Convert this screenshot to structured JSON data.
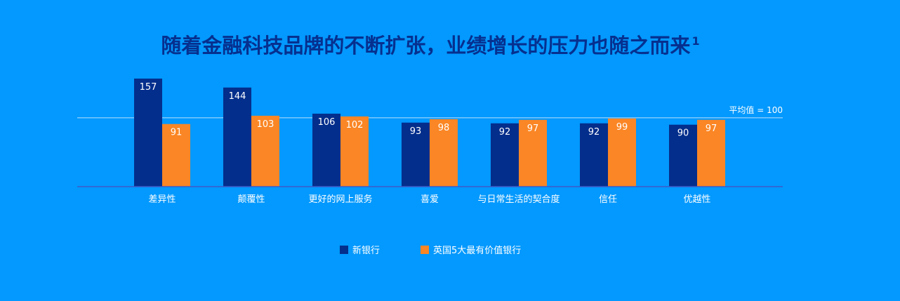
{
  "title": "随着金融科技品牌的不断扩张，业绩增长的压力也随之而来",
  "title_footnote": "1",
  "colors": {
    "background": "#0399FE",
    "series_new_bank": "#042E8C",
    "series_top5": "#FA8625",
    "axis_line": "#3C5AC8",
    "reference_line": "#BFDFFF",
    "title": "#06308F",
    "text": "#FFFFFF"
  },
  "reference_label": "平均值 = 100",
  "legend": [
    {
      "label": "新银行",
      "color": "#042E8C"
    },
    {
      "label": "英国5大最有价值银行",
      "color": "#FA8625"
    }
  ],
  "chart_data": {
    "type": "bar",
    "categories": [
      "差异性",
      "颠覆性",
      "更好的网上服务",
      "喜爱",
      "与日常生活的契合度",
      "信任",
      "优越性"
    ],
    "series": [
      {
        "name": "新银行",
        "values": [
          157,
          144,
          106,
          93,
          92,
          92,
          90
        ]
      },
      {
        "name": "英国5大最有价值银行",
        "values": [
          91,
          103,
          102,
          98,
          97,
          99,
          97
        ]
      }
    ],
    "reference_value": 100,
    "legend_position": "bottom-center",
    "grid": false
  }
}
